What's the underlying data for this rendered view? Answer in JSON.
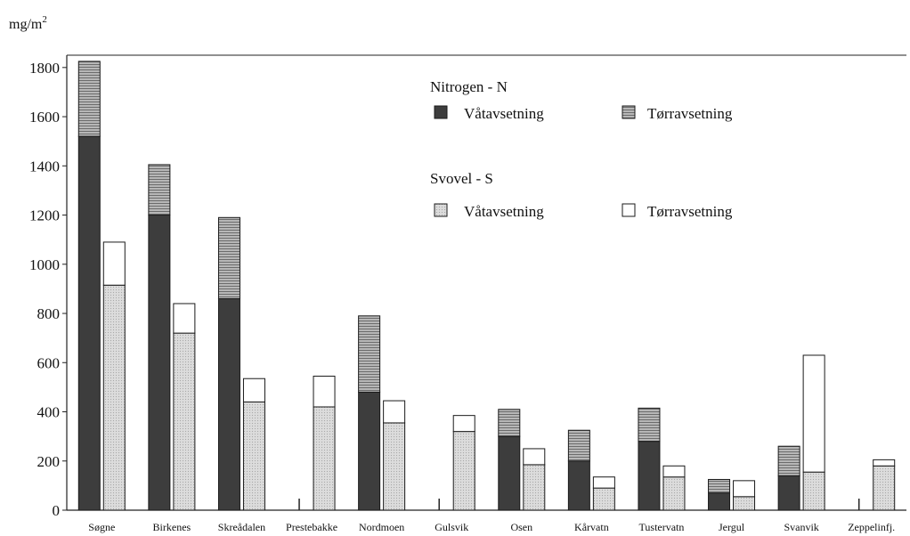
{
  "chart_data": {
    "type": "bar",
    "unit_label": "mg/m",
    "unit_superscript": "2",
    "ylim": [
      0,
      1850
    ],
    "yticks": [
      0,
      200,
      400,
      600,
      800,
      1000,
      1200,
      1400,
      1600,
      1800
    ],
    "categories": [
      "Søgne",
      "Birkenes",
      "Skreådalen",
      "Prestebakke",
      "Nordmoen",
      "Gulsvik",
      "Osen",
      "Kårvatn",
      "Tustervatn",
      "Jergul",
      "Svanvik",
      "Zeppelinfj."
    ],
    "groups": [
      {
        "name": "Nitrogen - N",
        "series": [
          {
            "name": "Våtavsetning",
            "values": [
              1520,
              1200,
              860,
              0,
              480,
              0,
              300,
              200,
              280,
              70,
              140,
              0
            ]
          },
          {
            "name": "Tørravsetning",
            "values": [
              305,
              205,
              330,
              0,
              310,
              0,
              110,
              125,
              135,
              55,
              120,
              0
            ]
          }
        ]
      },
      {
        "name": "Svovel - S",
        "series": [
          {
            "name": "Våtavsetning",
            "values": [
              915,
              720,
              440,
              420,
              355,
              320,
              185,
              90,
              135,
              55,
              155,
              180
            ]
          },
          {
            "name": "Tørravsetning",
            "values": [
              175,
              120,
              95,
              125,
              90,
              65,
              65,
              45,
              45,
              65,
              475,
              25
            ]
          }
        ]
      }
    ],
    "missing_marker_categories": [
      "Prestebakke",
      "Gulsvik",
      "Zeppelinfj."
    ],
    "colors": {
      "n_wet": "#3d3d3d",
      "n_dry": "#a9a9a9",
      "s_wet": "#d6d6d6",
      "s_dry": "#ffffff",
      "outline": "#1a1a1a"
    }
  }
}
